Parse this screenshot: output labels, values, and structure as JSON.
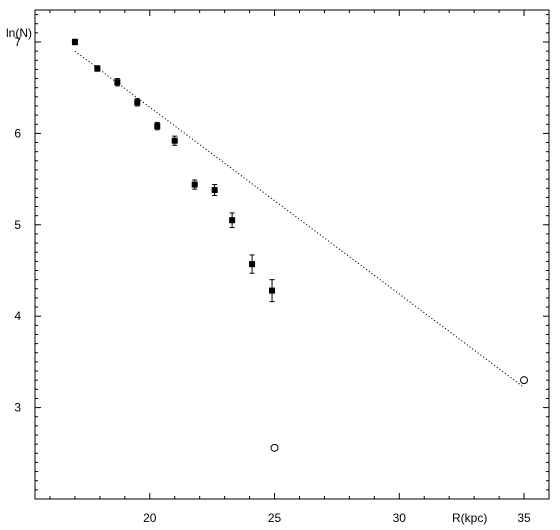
{
  "chart_data": {
    "type": "scatter",
    "title": "",
    "xlabel": "R(kpc)",
    "ylabel": "ln(N)",
    "xlim": [
      15.4,
      36.0
    ],
    "ylim": [
      2.0,
      7.35
    ],
    "xticks": [
      20,
      25,
      30,
      35
    ],
    "yticks": [
      3,
      4,
      5,
      6,
      7
    ],
    "grid": false,
    "legend": "none",
    "series": [
      {
        "marker": "filled-square",
        "color": "#000000",
        "points": [
          {
            "x": 17.0,
            "y": 7.0,
            "err": 0.03
          },
          {
            "x": 17.9,
            "y": 6.71,
            "err": 0.03
          },
          {
            "x": 18.7,
            "y": 6.56,
            "err": 0.04
          },
          {
            "x": 19.5,
            "y": 6.34,
            "err": 0.04
          },
          {
            "x": 20.3,
            "y": 6.08,
            "err": 0.04
          },
          {
            "x": 21.0,
            "y": 5.92,
            "err": 0.05
          },
          {
            "x": 21.8,
            "y": 5.44,
            "err": 0.05
          },
          {
            "x": 22.6,
            "y": 5.38,
            "err": 0.06
          },
          {
            "x": 23.3,
            "y": 5.05,
            "err": 0.08
          },
          {
            "x": 24.1,
            "y": 4.57,
            "err": 0.1
          },
          {
            "x": 24.9,
            "y": 4.28,
            "err": 0.12
          }
        ]
      },
      {
        "marker": "open-circle",
        "color": "#000000",
        "points": [
          {
            "x": 25.0,
            "y": 2.56
          },
          {
            "x": 35.0,
            "y": 3.3
          }
        ]
      }
    ],
    "fit_line": {
      "style": "dotted",
      "color": "#000000",
      "x": [
        17.0,
        35.0
      ],
      "y": [
        6.9,
        3.22
      ]
    }
  }
}
